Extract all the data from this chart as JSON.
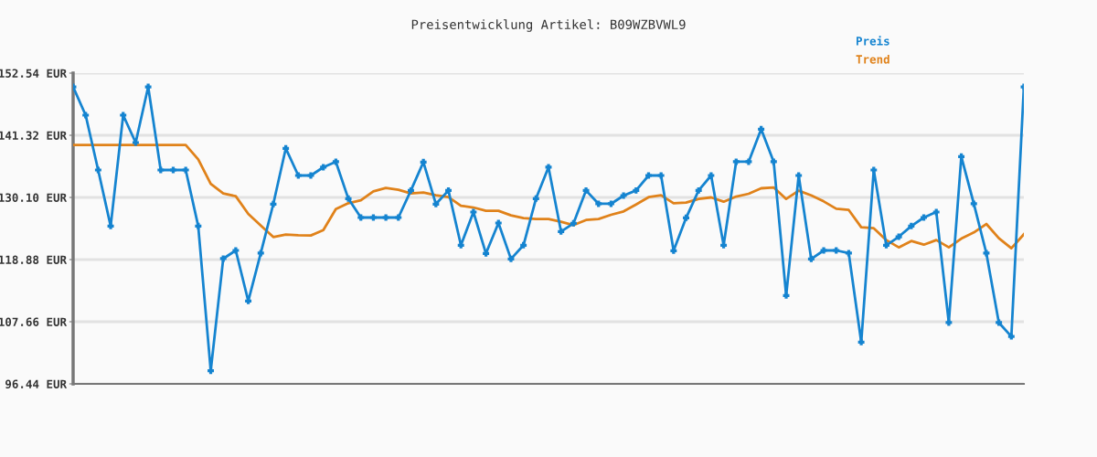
{
  "chart_data": {
    "type": "line",
    "title": "Preisentwicklung Artikel: B09WZBVWL9",
    "categories": [
      null,
      null,
      null,
      null,
      null,
      null,
      null,
      null,
      null,
      null,
      null,
      null,
      null,
      null,
      null,
      null,
      null,
      null,
      null,
      null,
      null,
      null,
      null,
      null,
      null,
      null,
      null,
      null,
      null,
      null,
      null,
      null,
      null,
      null,
      null,
      null,
      null,
      null,
      null,
      null,
      null,
      null,
      null,
      null,
      null,
      null,
      null,
      null,
      null,
      null,
      null,
      null,
      null,
      null,
      null,
      null,
      null,
      null,
      null,
      null,
      null,
      null,
      null,
      null,
      null,
      null,
      null,
      null,
      null,
      null,
      null,
      null,
      null,
      null,
      null,
      null,
      null
    ],
    "series": [
      {
        "name": "Preis",
        "color": "#1584d0",
        "marker": "cross",
        "values": [
          150.06,
          144.95,
          135.05,
          124.93,
          144.95,
          140.0,
          150.06,
          135.05,
          135.05,
          135.05,
          124.93,
          98.8,
          119.05,
          120.53,
          111.4,
          120.04,
          128.9,
          138.96,
          134.06,
          134.06,
          135.55,
          136.54,
          129.88,
          126.47,
          126.47,
          126.47,
          126.47,
          131.36,
          136.48,
          128.9,
          131.36,
          121.47,
          127.46,
          119.98,
          125.48,
          118.99,
          121.47,
          129.88,
          135.55,
          123.94,
          125.43,
          131.36,
          128.95,
          128.95,
          130.43,
          131.36,
          134.06,
          134.06,
          120.48,
          126.42,
          131.36,
          134.06,
          121.47,
          136.54,
          136.54,
          142.42,
          136.54,
          112.39,
          134.06,
          118.99,
          120.53,
          120.53,
          120.04,
          103.98,
          135.05,
          121.47,
          123.0,
          124.93,
          126.47,
          127.46,
          107.5,
          137.47,
          128.95,
          120.04,
          107.5,
          105.0,
          150.06
        ]
      },
      {
        "name": "Trend",
        "color": "#e0821a",
        "marker": "none",
        "values": [
          139.56,
          139.56,
          139.56,
          139.56,
          139.56,
          139.56,
          139.56,
          139.56,
          139.56,
          139.56,
          136.98,
          132.57,
          130.82,
          130.32,
          127.13,
          125.04,
          122.95,
          123.39,
          123.28,
          123.23,
          124.2,
          128.0,
          129.05,
          129.6,
          131.2,
          131.8,
          131.47,
          130.82,
          130.98,
          130.48,
          130.15,
          128.6,
          128.28,
          127.68,
          127.68,
          126.86,
          126.36,
          126.2,
          126.2,
          125.7,
          125.1,
          126.03,
          126.2,
          126.97,
          127.57,
          128.83,
          130.15,
          130.48,
          129.05,
          129.16,
          129.82,
          130.1,
          129.33,
          130.26,
          130.76,
          131.75,
          131.91,
          129.82,
          131.31,
          130.48,
          129.38,
          128.06,
          127.84,
          124.71,
          124.54,
          122.4,
          121.08,
          122.23,
          121.57,
          122.4,
          121.08,
          122.67,
          123.77,
          125.31,
          122.73,
          120.92,
          123.45
        ]
      }
    ],
    "ylim": [
      96.44,
      152.54
    ],
    "yticks": [
      {
        "value": 96.44,
        "label": "96.44 EUR"
      },
      {
        "value": 107.66,
        "label": "107.66 EUR"
      },
      {
        "value": 118.88,
        "label": "118.88 EUR"
      },
      {
        "value": 130.1,
        "label": "130.10 EUR"
      },
      {
        "value": 141.32,
        "label": "141.32 EUR"
      },
      {
        "value": 152.54,
        "label": "152.54 EUR"
      }
    ],
    "grid": "y",
    "legend": "top right",
    "line_style": "solid"
  }
}
